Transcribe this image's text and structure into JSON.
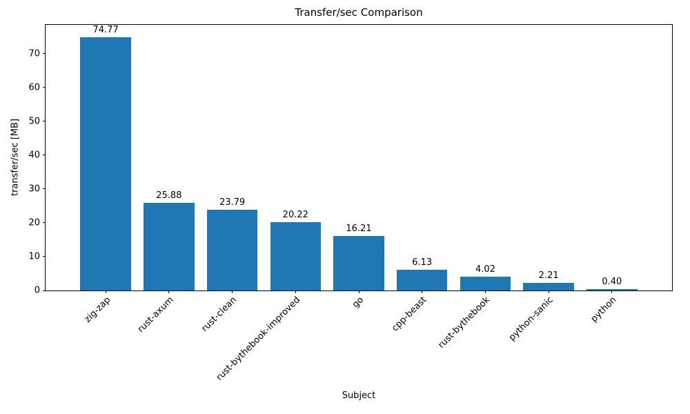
{
  "chart_data": {
    "type": "bar",
    "title": "Transfer/sec Comparison",
    "xlabel": "Subject",
    "ylabel": "transfer/sec [MB]",
    "categories": [
      "zig-zap",
      "rust-axum",
      "rust-clean",
      "rust-bythebook-improved",
      "go",
      "cpp-beast",
      "rust-bythebook",
      "python-sanic",
      "python"
    ],
    "values": [
      74.77,
      25.88,
      23.79,
      20.22,
      16.21,
      6.13,
      4.02,
      2.21,
      0.4
    ],
    "bar_labels": [
      "74.77",
      "25.88",
      "23.79",
      "20.22",
      "16.21",
      "6.13",
      "4.02",
      "2.21",
      "0.40"
    ],
    "ylim": [
      0,
      78.5
    ],
    "yticks": [
      0,
      10,
      20,
      30,
      40,
      50,
      60,
      70
    ],
    "bar_color": "#1f77b4",
    "bar_width_fraction": 0.8,
    "grid": false,
    "legend_position": "none"
  }
}
